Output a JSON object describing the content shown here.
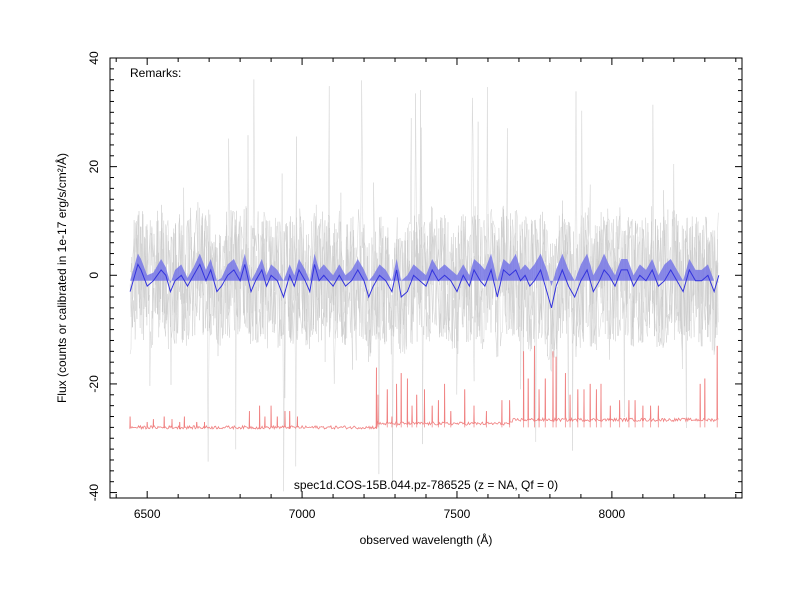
{
  "chart_data": {
    "type": "line",
    "xlabel": "observed wavelength (Å)",
    "ylabel": "Flux (counts or calibrated in 1e-17 erg/s/cm²/Å)",
    "remarks": "Remarks:",
    "caption": "spec1d.COS-15B.044.pz-786525 (z =   NA, Qf = 0)",
    "xlim": [
      6380,
      8420
    ],
    "ylim": [
      -41,
      40
    ],
    "x_ticks": [
      6500,
      7000,
      7500,
      8000
    ],
    "y_ticks": [
      -40,
      -20,
      0,
      20,
      40
    ],
    "grid": false,
    "colors": {
      "raw_spectrum": "#c8c8c8",
      "smoothed": "#3333dd",
      "smoothed_band": "#7777e6",
      "sky": "#f08080"
    },
    "series": [
      {
        "key": "raw",
        "x_range": [
          6445,
          8345
        ],
        "noise_envelope": [
          -12,
          15
        ],
        "outlier_range": [
          -40,
          38
        ]
      },
      {
        "key": "smoothed",
        "x": [
          6445,
          6470,
          6480,
          6500,
          6520,
          6545,
          6560,
          6575,
          6590,
          6610,
          6630,
          6650,
          6670,
          6690,
          6705,
          6725,
          6740,
          6760,
          6780,
          6800,
          6815,
          6835,
          6850,
          6870,
          6885,
          6900,
          6920,
          6940,
          6960,
          6975,
          6990,
          7010,
          7025,
          7040,
          7055,
          7070,
          7085,
          7100,
          7120,
          7140,
          7160,
          7180,
          7200,
          7215,
          7230,
          7250,
          7270,
          7290,
          7305,
          7320,
          7340,
          7360,
          7380,
          7400,
          7420,
          7440,
          7460,
          7480,
          7500,
          7520,
          7540,
          7555,
          7575,
          7590,
          7610,
          7630,
          7650,
          7670,
          7690,
          7705,
          7720,
          7735,
          7750,
          7770,
          7790,
          7805,
          7820,
          7840,
          7860,
          7880,
          7900,
          7920,
          7940,
          7960,
          7975,
          7990,
          8010,
          8030,
          8050,
          8070,
          8090,
          8110,
          8130,
          8150,
          8170,
          8190,
          8210,
          8230,
          8250,
          8270,
          8290,
          8310,
          8330,
          8345
        ],
        "y": [
          -3,
          2,
          1,
          -2,
          -1,
          1,
          0,
          -3,
          -1,
          0,
          -2,
          0,
          2,
          -1,
          1,
          -3,
          -2,
          0,
          1,
          -1,
          2,
          -3,
          -1,
          1,
          -2,
          0,
          -1,
          -4,
          0,
          -2,
          1,
          -1,
          -3,
          2,
          -1,
          0,
          -1,
          -2,
          0,
          -2,
          -1,
          1,
          -1,
          -4,
          -2,
          0,
          -1,
          -3,
          1,
          -4,
          -3,
          0,
          -1,
          -2,
          1,
          -1,
          0,
          -1,
          -3,
          0,
          -2,
          1,
          -1,
          -2,
          1,
          -4,
          1,
          0,
          1,
          -1,
          0,
          -2,
          -1,
          1,
          -3,
          -6,
          -2,
          1,
          -2,
          -4,
          -1,
          1,
          -3,
          -1,
          1,
          0,
          -2,
          1,
          1,
          -2,
          0,
          -1,
          1,
          -2,
          -1,
          1,
          -1,
          -3,
          1,
          -1,
          -1,
          0,
          -3,
          0
        ],
        "band_halfwidth": [
          2,
          2,
          2,
          2,
          1.5,
          2,
          1.5,
          1.5,
          2,
          2,
          1.5,
          1.5,
          2,
          2,
          2,
          2,
          1.5,
          2,
          2,
          1.5,
          2,
          2,
          1.5,
          2,
          2,
          2,
          2,
          3,
          2,
          2,
          2,
          2,
          2,
          2,
          2,
          2,
          2,
          2,
          2,
          2,
          2,
          2,
          2,
          3,
          2,
          2,
          2,
          2,
          2,
          3,
          3,
          2,
          2,
          2,
          2,
          2,
          2,
          2,
          3,
          2,
          2,
          2,
          3,
          3,
          3,
          3,
          2,
          2,
          3,
          2,
          2,
          3,
          3,
          3,
          4,
          4,
          3,
          3,
          3,
          3,
          3,
          3,
          3,
          3,
          3,
          2,
          2,
          2,
          2,
          2,
          2,
          2,
          2,
          2,
          3,
          2,
          2,
          2,
          2,
          2,
          2,
          2,
          2
        ]
      },
      {
        "key": "sky",
        "baseline": -28,
        "x_range": [
          6445,
          8345
        ],
        "lines": [
          {
            "x": 6445,
            "y": -26
          },
          {
            "x": 6500,
            "y": -27
          },
          {
            "x": 6520,
            "y": -26.5
          },
          {
            "x": 6555,
            "y": -26
          },
          {
            "x": 6580,
            "y": -26.5
          },
          {
            "x": 6605,
            "y": -27
          },
          {
            "x": 6620,
            "y": -26
          },
          {
            "x": 6660,
            "y": -27
          },
          {
            "x": 6685,
            "y": -27
          },
          {
            "x": 6830,
            "y": -25
          },
          {
            "x": 6863,
            "y": -24
          },
          {
            "x": 6880,
            "y": -26
          },
          {
            "x": 6900,
            "y": -24
          },
          {
            "x": 6920,
            "y": -26
          },
          {
            "x": 6945,
            "y": -25
          },
          {
            "x": 6960,
            "y": -25
          },
          {
            "x": 6985,
            "y": -26
          },
          {
            "x": 7240,
            "y": -17
          },
          {
            "x": 7245,
            "y": -22
          },
          {
            "x": 7275,
            "y": -21
          },
          {
            "x": 7290,
            "y": -26
          },
          {
            "x": 7305,
            "y": -20
          },
          {
            "x": 7320,
            "y": -18
          },
          {
            "x": 7340,
            "y": -19
          },
          {
            "x": 7355,
            "y": -24
          },
          {
            "x": 7370,
            "y": -22
          },
          {
            "x": 7395,
            "y": -21
          },
          {
            "x": 7420,
            "y": -24
          },
          {
            "x": 7440,
            "y": -23
          },
          {
            "x": 7460,
            "y": -20
          },
          {
            "x": 7480,
            "y": -25
          },
          {
            "x": 7525,
            "y": -21
          },
          {
            "x": 7555,
            "y": -24
          },
          {
            "x": 7595,
            "y": -25
          },
          {
            "x": 7645,
            "y": -23
          },
          {
            "x": 7670,
            "y": -23
          },
          {
            "x": 7715,
            "y": -14
          },
          {
            "x": 7730,
            "y": -19
          },
          {
            "x": 7750,
            "y": -13
          },
          {
            "x": 7765,
            "y": -21
          },
          {
            "x": 7785,
            "y": -19
          },
          {
            "x": 7810,
            "y": -14
          },
          {
            "x": 7820,
            "y": -15
          },
          {
            "x": 7850,
            "y": -18
          },
          {
            "x": 7865,
            "y": -22
          },
          {
            "x": 7890,
            "y": -21
          },
          {
            "x": 7910,
            "y": -21
          },
          {
            "x": 7930,
            "y": -20
          },
          {
            "x": 7950,
            "y": -21
          },
          {
            "x": 7965,
            "y": -20
          },
          {
            "x": 7995,
            "y": -24
          },
          {
            "x": 8025,
            "y": -23
          },
          {
            "x": 8055,
            "y": -23
          },
          {
            "x": 8075,
            "y": -23
          },
          {
            "x": 8100,
            "y": -24
          },
          {
            "x": 8125,
            "y": -24
          },
          {
            "x": 8150,
            "y": -24
          },
          {
            "x": 8285,
            "y": -20
          },
          {
            "x": 8300,
            "y": -19
          },
          {
            "x": 8340,
            "y": -13
          }
        ]
      }
    ]
  }
}
